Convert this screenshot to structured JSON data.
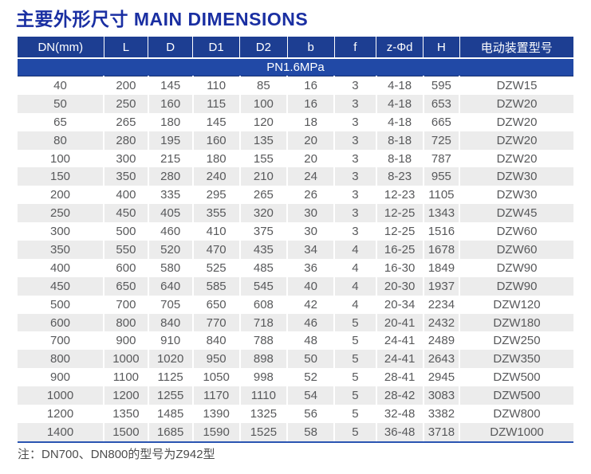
{
  "page": {
    "title": "主要外形尺寸 MAIN DIMENSIONS",
    "note": "注：DN700、DN800的型号为Z942型"
  },
  "colors": {
    "title": "#1a2fa2",
    "header_bg": "#1d3e92",
    "pn_bg": "#2149a6",
    "stripe": "#ececec",
    "cell_text": "#58595b",
    "note_text": "#4d4d4d",
    "bottom_line": "#2b55b2"
  },
  "table": {
    "columns": [
      "DN(mm)",
      "L",
      "D",
      "D1",
      "D2",
      "b",
      "f",
      "z-Φd",
      "H",
      "电动装置型号"
    ],
    "subheader": "PN1.6MPa",
    "rows": [
      [
        "40",
        "200",
        "145",
        "110",
        "85",
        "16",
        "3",
        "4-18",
        "595",
        "DZW15"
      ],
      [
        "50",
        "250",
        "160",
        "115",
        "100",
        "16",
        "3",
        "4-18",
        "653",
        "DZW20"
      ],
      [
        "65",
        "265",
        "180",
        "145",
        "120",
        "18",
        "3",
        "4-18",
        "665",
        "DZW20"
      ],
      [
        "80",
        "280",
        "195",
        "160",
        "135",
        "20",
        "3",
        "8-18",
        "725",
        "DZW20"
      ],
      [
        "100",
        "300",
        "215",
        "180",
        "155",
        "20",
        "3",
        "8-18",
        "787",
        "DZW20"
      ],
      [
        "150",
        "350",
        "280",
        "240",
        "210",
        "24",
        "3",
        "8-23",
        "955",
        "DZW30"
      ],
      [
        "200",
        "400",
        "335",
        "295",
        "265",
        "26",
        "3",
        "12-23",
        "1105",
        "DZW30"
      ],
      [
        "250",
        "450",
        "405",
        "355",
        "320",
        "30",
        "3",
        "12-25",
        "1343",
        "DZW45"
      ],
      [
        "300",
        "500",
        "460",
        "410",
        "375",
        "30",
        "3",
        "12-25",
        "1516",
        "DZW60"
      ],
      [
        "350",
        "550",
        "520",
        "470",
        "435",
        "34",
        "4",
        "16-25",
        "1678",
        "DZW60"
      ],
      [
        "400",
        "600",
        "580",
        "525",
        "485",
        "36",
        "4",
        "16-30",
        "1849",
        "DZW90"
      ],
      [
        "450",
        "650",
        "640",
        "585",
        "545",
        "40",
        "4",
        "20-30",
        "1937",
        "DZW90"
      ],
      [
        "500",
        "700",
        "705",
        "650",
        "608",
        "42",
        "4",
        "20-34",
        "2234",
        "DZW120"
      ],
      [
        "600",
        "800",
        "840",
        "770",
        "718",
        "46",
        "5",
        "20-41",
        "2432",
        "DZW180"
      ],
      [
        "700",
        "900",
        "910",
        "840",
        "788",
        "48",
        "5",
        "24-41",
        "2489",
        "DZW250"
      ],
      [
        "800",
        "1000",
        "1020",
        "950",
        "898",
        "50",
        "5",
        "24-41",
        "2643",
        "DZW350"
      ],
      [
        "900",
        "1100",
        "1125",
        "1050",
        "998",
        "52",
        "5",
        "28-41",
        "2945",
        "DZW500"
      ],
      [
        "1000",
        "1200",
        "1255",
        "1170",
        "1110",
        "54",
        "5",
        "28-42",
        "3083",
        "DZW500"
      ],
      [
        "1200",
        "1350",
        "1485",
        "1390",
        "1325",
        "56",
        "5",
        "32-48",
        "3382",
        "DZW800"
      ],
      [
        "1400",
        "1500",
        "1685",
        "1590",
        "1525",
        "58",
        "5",
        "36-48",
        "3718",
        "DZW1000"
      ]
    ]
  }
}
